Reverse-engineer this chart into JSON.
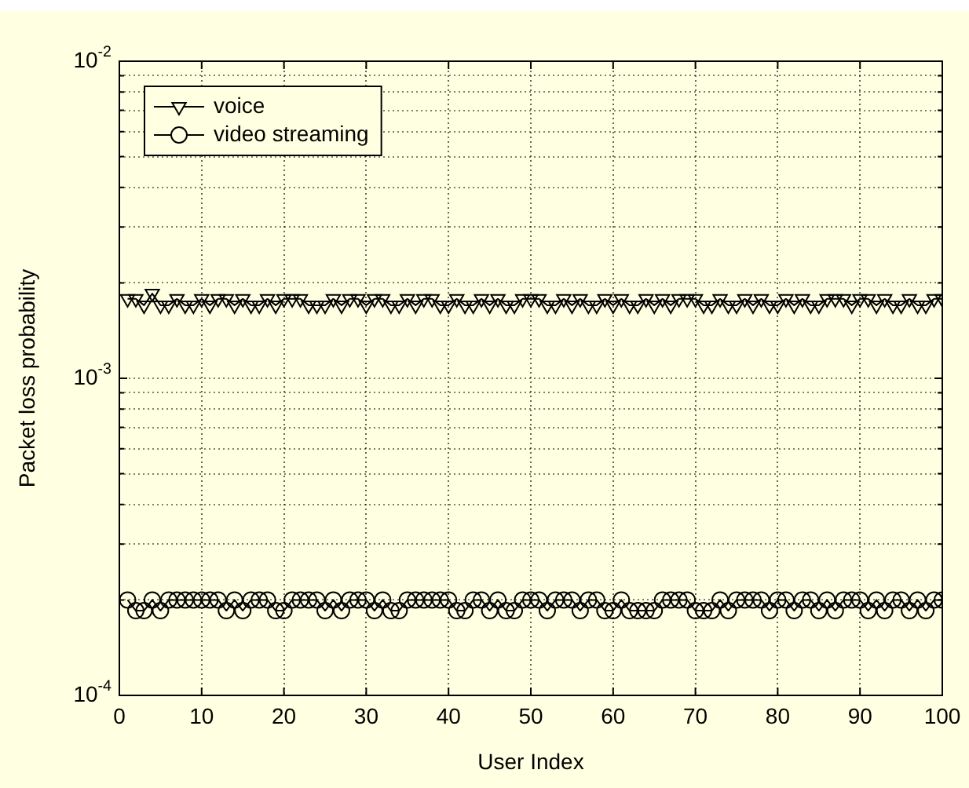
{
  "chart_data": {
    "type": "line",
    "xlabel": "User Index",
    "ylabel": "Packet loss probability",
    "log": "y",
    "grid": true,
    "legend": "top left",
    "line_style": "solid",
    "xlim": [
      0,
      100
    ],
    "xticks": [
      0,
      10,
      20,
      30,
      40,
      50,
      60,
      70,
      80,
      90,
      100
    ],
    "ylim": [
      0.0001,
      0.01
    ],
    "yticks": [
      {
        "value": 0.0001,
        "label": "10$^{-4}$"
      },
      {
        "value": 0.0002,
        "label": null
      },
      {
        "value": 0.0003,
        "label": null
      },
      {
        "value": 0.0004,
        "label": null
      },
      {
        "value": 0.0005,
        "label": null
      },
      {
        "value": 0.0006,
        "label": null
      },
      {
        "value": 0.0007,
        "label": null
      },
      {
        "value": 0.0008,
        "label": null
      },
      {
        "value": 0.0009,
        "label": null
      },
      {
        "value": 0.001,
        "label": "10$^{-3}$"
      },
      {
        "value": 0.002,
        "label": null
      },
      {
        "value": 0.003,
        "label": null
      },
      {
        "value": 0.004,
        "label": null
      },
      {
        "value": 0.005,
        "label": null
      },
      {
        "value": 0.006,
        "label": null
      },
      {
        "value": 0.007,
        "label": null
      },
      {
        "value": 0.008,
        "label": null
      },
      {
        "value": 0.009,
        "label": null
      },
      {
        "value": 0.01,
        "label": "10$^{-2}$"
      }
    ],
    "x": [
      1,
      2,
      3,
      4,
      5,
      6,
      7,
      8,
      9,
      10,
      11,
      12,
      13,
      14,
      15,
      16,
      17,
      18,
      19,
      20,
      21,
      22,
      23,
      24,
      25,
      26,
      27,
      28,
      29,
      30,
      31,
      32,
      33,
      34,
      35,
      36,
      37,
      38,
      39,
      40,
      41,
      42,
      43,
      44,
      45,
      46,
      47,
      48,
      49,
      50,
      51,
      52,
      53,
      54,
      55,
      56,
      57,
      58,
      59,
      60,
      61,
      62,
      63,
      64,
      65,
      66,
      67,
      68,
      69,
      70,
      71,
      72,
      73,
      74,
      75,
      76,
      77,
      78,
      79,
      80,
      81,
      82,
      83,
      84,
      85,
      86,
      87,
      88,
      89,
      90,
      91,
      92,
      93,
      94,
      95,
      96,
      97,
      98,
      99,
      100
    ],
    "series": [
      {
        "name": "voice",
        "color": "#000000",
        "marker": "triangle",
        "values": [
          0.00178,
          0.00178,
          0.0017,
          0.00185,
          0.0017,
          0.0017,
          0.00178,
          0.0017,
          0.0017,
          0.00178,
          0.0017,
          0.00178,
          0.00178,
          0.0017,
          0.00178,
          0.0017,
          0.0017,
          0.00178,
          0.0017,
          0.00178,
          0.00178,
          0.00178,
          0.0017,
          0.0017,
          0.0017,
          0.00178,
          0.0017,
          0.00178,
          0.00178,
          0.0017,
          0.00178,
          0.00178,
          0.0017,
          0.0017,
          0.00178,
          0.0017,
          0.00178,
          0.00178,
          0.0017,
          0.0017,
          0.00178,
          0.0017,
          0.0017,
          0.00178,
          0.0017,
          0.00178,
          0.0017,
          0.0017,
          0.00178,
          0.00178,
          0.00178,
          0.0017,
          0.0017,
          0.00178,
          0.0017,
          0.00178,
          0.0017,
          0.0017,
          0.00178,
          0.0017,
          0.00178,
          0.0017,
          0.0017,
          0.00178,
          0.0017,
          0.00178,
          0.0017,
          0.00178,
          0.00178,
          0.00178,
          0.0017,
          0.0017,
          0.00178,
          0.0017,
          0.0017,
          0.00178,
          0.0017,
          0.00178,
          0.0017,
          0.0017,
          0.00178,
          0.0017,
          0.00178,
          0.0017,
          0.0017,
          0.00178,
          0.00178,
          0.00178,
          0.0017,
          0.00178,
          0.00178,
          0.0017,
          0.00178,
          0.0017,
          0.0017,
          0.00178,
          0.0017,
          0.0017,
          0.00178,
          0.00178
        ]
      },
      {
        "name": "video streaming",
        "color": "#000000",
        "marker": "circle",
        "values": [
          0.0002,
          0.000185,
          0.000185,
          0.0002,
          0.000185,
          0.0002,
          0.0002,
          0.0002,
          0.0002,
          0.0002,
          0.0002,
          0.0002,
          0.000185,
          0.0002,
          0.000185,
          0.0002,
          0.0002,
          0.0002,
          0.000185,
          0.000185,
          0.0002,
          0.0002,
          0.0002,
          0.0002,
          0.000185,
          0.0002,
          0.000185,
          0.0002,
          0.0002,
          0.0002,
          0.000185,
          0.0002,
          0.000185,
          0.000185,
          0.0002,
          0.0002,
          0.0002,
          0.0002,
          0.0002,
          0.0002,
          0.000185,
          0.000185,
          0.0002,
          0.0002,
          0.000185,
          0.0002,
          0.000185,
          0.000185,
          0.0002,
          0.0002,
          0.0002,
          0.000185,
          0.0002,
          0.0002,
          0.0002,
          0.000185,
          0.0002,
          0.0002,
          0.000185,
          0.000185,
          0.0002,
          0.000185,
          0.000185,
          0.000185,
          0.000185,
          0.0002,
          0.0002,
          0.0002,
          0.0002,
          0.000185,
          0.000185,
          0.000185,
          0.0002,
          0.000185,
          0.0002,
          0.0002,
          0.0002,
          0.0002,
          0.000185,
          0.0002,
          0.0002,
          0.000185,
          0.0002,
          0.0002,
          0.000185,
          0.0002,
          0.000185,
          0.0002,
          0.0002,
          0.0002,
          0.000185,
          0.0002,
          0.000185,
          0.0002,
          0.0002,
          0.000185,
          0.0002,
          0.000185,
          0.0002,
          0.0002
        ]
      }
    ]
  }
}
